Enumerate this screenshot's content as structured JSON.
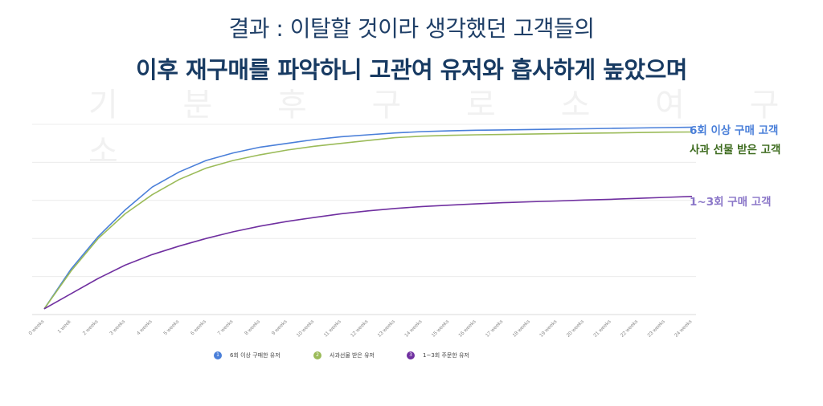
{
  "header": {
    "title_line1": "결과 : 이탈할 것이라 생각했던 고객들의",
    "title_line2": "이후 재구매를 파악하니 고관여 유저와 흡사하게 높았으며"
  },
  "chart_data": {
    "type": "line",
    "x": [
      "0 weeks",
      "1 week",
      "2 weeks",
      "3 weeks",
      "4 weeks",
      "5 weeks",
      "6 weeks",
      "7 weeks",
      "8 weeks",
      "9 weeks",
      "10 weeks",
      "11 weeks",
      "12 weeks",
      "13 weeks",
      "14 weeks",
      "15 weeks",
      "16 weeks",
      "17 weeks",
      "18 weeks",
      "19 weeks",
      "20 weeks",
      "21 weeks",
      "22 weeks",
      "23 weeks",
      "24 weeks"
    ],
    "ylim": [
      0,
      100
    ],
    "y_gridlines": [
      0,
      20,
      40,
      60,
      80,
      100
    ],
    "grid": true,
    "series": [
      {
        "name": "6회 이상 구매한 유저",
        "color": "#4a7fd9",
        "values": [
          3,
          24,
          41,
          55,
          67,
          75,
          81,
          85,
          88,
          90,
          92,
          93.5,
          94.5,
          95.5,
          96.2,
          96.6,
          96.9,
          97.1,
          97.3,
          97.5,
          97.7,
          97.9,
          98.1,
          98.3,
          98.5
        ]
      },
      {
        "name": "사과선물 받은 유저",
        "color": "#9bbb59",
        "values": [
          3,
          23,
          40,
          53,
          63,
          71,
          77,
          81,
          84,
          86.5,
          88.5,
          90,
          91.5,
          93,
          93.8,
          94.2,
          94.5,
          94.7,
          94.9,
          95.1,
          95.3,
          95.5,
          95.7,
          95.9,
          96
        ]
      },
      {
        "name": "1~3회 주문한 유저",
        "color": "#7030a0",
        "values": [
          3,
          11,
          19,
          26,
          31.5,
          36,
          40,
          43.5,
          46.5,
          49,
          51,
          53,
          54.5,
          55.8,
          56.8,
          57.5,
          58.2,
          58.8,
          59.3,
          59.7,
          60.2,
          60.6,
          61.1,
          61.6,
          62.1
        ]
      }
    ],
    "annotations": [
      {
        "series": 0,
        "text": "6회 이상 구매 고객",
        "color": "#4a7fd9"
      },
      {
        "series": 1,
        "text": "사과 선물 받은 고객",
        "color": "#3d6b1e"
      },
      {
        "series": 2,
        "text": "1~3회 구매 고객",
        "color": "#8a76c8"
      }
    ]
  },
  "legend": {
    "placement": "bottom",
    "items": [
      {
        "index": "1",
        "label": "6회 이상 구매한 유저",
        "color": "#4a7fd9"
      },
      {
        "index": "2",
        "label": "사과선물 받은 유저",
        "color": "#9bbb59"
      },
      {
        "index": "3",
        "label": "1~3회 주문한 유저",
        "color": "#7030a0"
      }
    ]
  }
}
